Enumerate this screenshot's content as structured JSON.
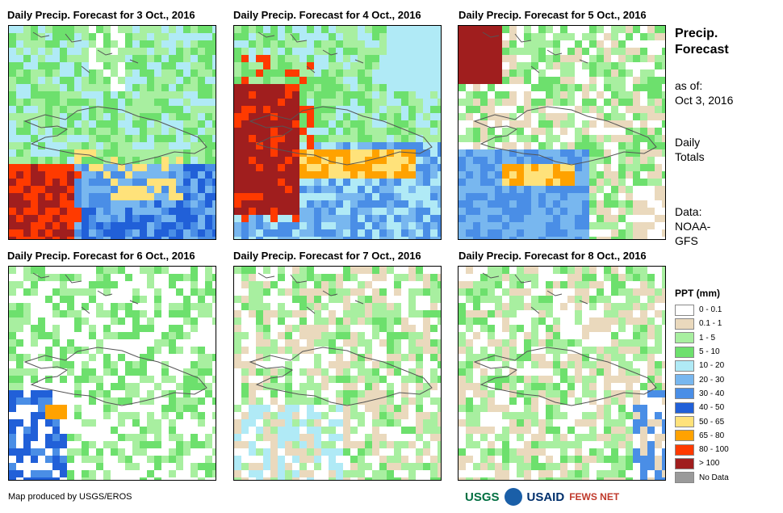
{
  "panels": [
    {
      "title": "Daily Precip. Forecast for 3 Oct., 2016",
      "scenario": "d1"
    },
    {
      "title": "Daily Precip. Forecast for 4 Oct., 2016",
      "scenario": "d2"
    },
    {
      "title": "Daily Precip. Forecast for 5 Oct., 2016",
      "scenario": "d3"
    },
    {
      "title": "Daily Precip. Forecast for 6 Oct., 2016",
      "scenario": "d4"
    },
    {
      "title": "Daily Precip. Forecast for 7 Oct., 2016",
      "scenario": "d5"
    },
    {
      "title": "Daily Precip. Forecast for 8 Oct., 2016",
      "scenario": "d6"
    }
  ],
  "side": {
    "title_line1": "Precip.",
    "title_line2": "Forecast",
    "asof_line1": "as of:",
    "asof_line2": "Oct 3, 2016",
    "totals_line1": "Daily",
    "totals_line2": "Totals",
    "data_line1": "Data:",
    "data_line2": "NOAA-",
    "data_line3": "GFS"
  },
  "legend": {
    "title": "PPT (mm)",
    "items": [
      {
        "label": "0 - 0.1",
        "color": "#ffffff"
      },
      {
        "label": "0.1 - 1",
        "color": "#ead9bd"
      },
      {
        "label": "1 - 5",
        "color": "#a8efa0"
      },
      {
        "label": "5 - 10",
        "color": "#6de06d"
      },
      {
        "label": "10 - 20",
        "color": "#b0eaf6"
      },
      {
        "label": "20 - 30",
        "color": "#78b7ef"
      },
      {
        "label": "30 - 40",
        "color": "#4a8ee6"
      },
      {
        "label": "40 - 50",
        "color": "#2160d8"
      },
      {
        "label": "50 - 65",
        "color": "#ffe27a"
      },
      {
        "label": "65 - 80",
        "color": "#ffa200"
      },
      {
        "label": "80 - 100",
        "color": "#ff3a00"
      },
      {
        "label": "> 100",
        "color": "#a01e1e"
      },
      {
        "label": "No Data",
        "color": "#9a9a9a"
      }
    ]
  },
  "credit": "Map produced by USGS/EROS",
  "logos": {
    "usgs": "USGS",
    "usaid": "USAID",
    "fewsnet": "FEWS NET",
    "usgs_color": "#006f41",
    "usaid_color": "#002f6c",
    "fews_color": "#c0392b",
    "noaa_color": "#1a5fa8"
  }
}
